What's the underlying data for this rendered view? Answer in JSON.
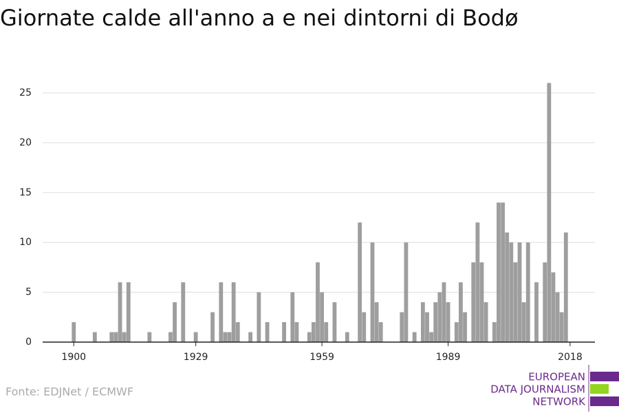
{
  "chart_data": {
    "type": "bar",
    "title": "Giornate calde all'anno a e nei dintorni di Bodø",
    "x": [
      1900,
      1905,
      1909,
      1910,
      1911,
      1912,
      1913,
      1918,
      1923,
      1924,
      1926,
      1929,
      1933,
      1935,
      1936,
      1937,
      1938,
      1939,
      1942,
      1944,
      1946,
      1950,
      1952,
      1953,
      1956,
      1957,
      1958,
      1959,
      1960,
      1962,
      1965,
      1968,
      1969,
      1971,
      1972,
      1973,
      1978,
      1979,
      1981,
      1983,
      1984,
      1985,
      1986,
      1987,
      1988,
      1989,
      1991,
      1992,
      1993,
      1995,
      1996,
      1997,
      1998,
      2000,
      2001,
      2002,
      2003,
      2004,
      2005,
      2006,
      2007,
      2008,
      2010,
      2012,
      2013,
      2014,
      2015,
      2016,
      2017
    ],
    "values": [
      2,
      1,
      1,
      1,
      6,
      1,
      6,
      1,
      1,
      4,
      6,
      1,
      3,
      6,
      1,
      1,
      6,
      2,
      1,
      5,
      2,
      2,
      5,
      2,
      1,
      2,
      8,
      5,
      2,
      4,
      1,
      12,
      3,
      10,
      4,
      2,
      3,
      10,
      1,
      4,
      3,
      1,
      4,
      5,
      6,
      4,
      2,
      6,
      3,
      8,
      12,
      8,
      4,
      2,
      14,
      14,
      11,
      10,
      8,
      10,
      4,
      10,
      6,
      8,
      26,
      7,
      5,
      3,
      11
    ],
    "color": "#9e9e9e",
    "xlim": [
      1892.6,
      2023.9
    ],
    "xticks": [
      1900,
      1929,
      1959,
      1989,
      2018
    ],
    "ylim": [
      0,
      26
    ],
    "yticks": [
      0,
      5,
      10,
      15,
      20,
      25
    ],
    "grid": true,
    "source": "Fonte: EDJNet / ECMWF"
  },
  "logo": {
    "lines": [
      "EUROPEAN",
      "DATA JOURNALISM",
      "NETWORK"
    ]
  }
}
